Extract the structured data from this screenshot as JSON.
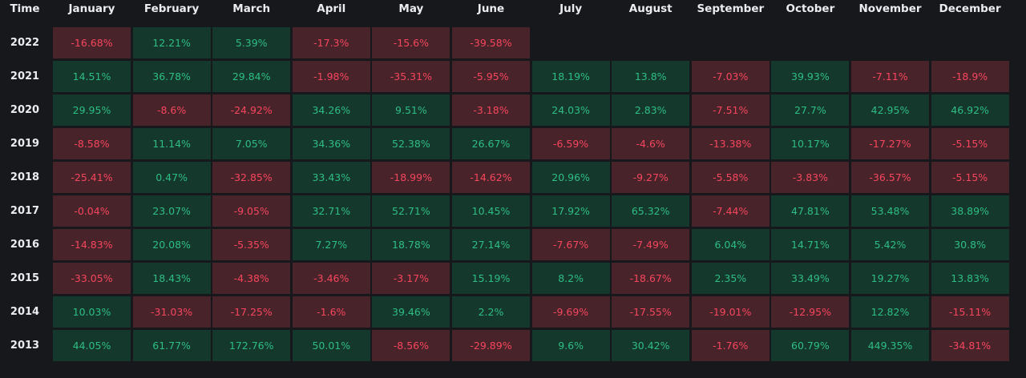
{
  "header": {
    "time_label": "Time",
    "months": [
      "January",
      "February",
      "March",
      "April",
      "May",
      "June",
      "July",
      "August",
      "September",
      "October",
      "November",
      "December"
    ]
  },
  "rows": [
    {
      "year": "2022",
      "values": [
        "-16.68%",
        "12.21%",
        "5.39%",
        "-17.3%",
        "-15.6%",
        "-39.58%",
        null,
        null,
        null,
        null,
        null,
        null
      ]
    },
    {
      "year": "2021",
      "values": [
        "14.51%",
        "36.78%",
        "29.84%",
        "-1.98%",
        "-35.31%",
        "-5.95%",
        "18.19%",
        "13.8%",
        "-7.03%",
        "39.93%",
        "-7.11%",
        "-18.9%"
      ]
    },
    {
      "year": "2020",
      "values": [
        "29.95%",
        "-8.6%",
        "-24.92%",
        "34.26%",
        "9.51%",
        "-3.18%",
        "24.03%",
        "2.83%",
        "-7.51%",
        "27.7%",
        "42.95%",
        "46.92%"
      ]
    },
    {
      "year": "2019",
      "values": [
        "-8.58%",
        "11.14%",
        "7.05%",
        "34.36%",
        "52.38%",
        "26.67%",
        "-6.59%",
        "-4.6%",
        "-13.38%",
        "10.17%",
        "-17.27%",
        "-5.15%"
      ]
    },
    {
      "year": "2018",
      "values": [
        "-25.41%",
        "0.47%",
        "-32.85%",
        "33.43%",
        "-18.99%",
        "-14.62%",
        "20.96%",
        "-9.27%",
        "-5.58%",
        "-3.83%",
        "-36.57%",
        "-5.15%"
      ]
    },
    {
      "year": "2017",
      "values": [
        "-0.04%",
        "23.07%",
        "-9.05%",
        "32.71%",
        "52.71%",
        "10.45%",
        "17.92%",
        "65.32%",
        "-7.44%",
        "47.81%",
        "53.48%",
        "38.89%"
      ]
    },
    {
      "year": "2016",
      "values": [
        "-14.83%",
        "20.08%",
        "-5.35%",
        "7.27%",
        "18.78%",
        "27.14%",
        "-7.67%",
        "-7.49%",
        "6.04%",
        "14.71%",
        "5.42%",
        "30.8%"
      ]
    },
    {
      "year": "2015",
      "values": [
        "-33.05%",
        "18.43%",
        "-4.38%",
        "-3.46%",
        "-3.17%",
        "15.19%",
        "8.2%",
        "-18.67%",
        "2.35%",
        "33.49%",
        "19.27%",
        "13.83%"
      ]
    },
    {
      "year": "2014",
      "values": [
        "10.03%",
        "-31.03%",
        "-17.25%",
        "-1.6%",
        "39.46%",
        "2.2%",
        "-9.69%",
        "-17.55%",
        "-19.01%",
        "-12.95%",
        "12.82%",
        "-15.11%"
      ]
    },
    {
      "year": "2013",
      "values": [
        "44.05%",
        "61.77%",
        "172.76%",
        "50.01%",
        "-8.56%",
        "-29.89%",
        "9.6%",
        "30.42%",
        "-1.76%",
        "60.79%",
        "449.35%",
        "-34.81%"
      ]
    }
  ],
  "colors": {
    "background": "#17181c",
    "positive_bg": "#15382c",
    "positive_text": "#2ebd85",
    "negative_bg": "#48232a",
    "negative_text": "#f6465d",
    "header_text": "#eaecef"
  }
}
